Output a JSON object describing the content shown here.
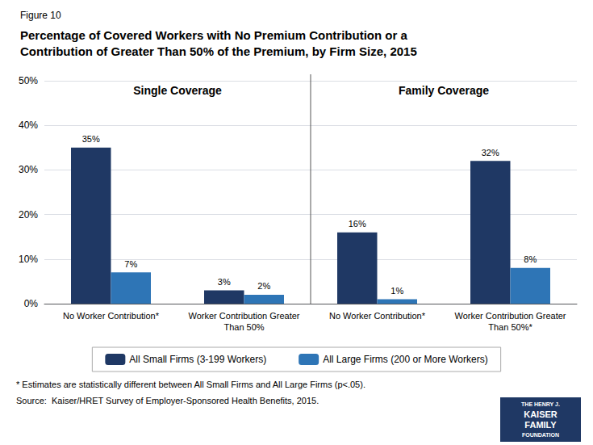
{
  "chart_data": {
    "type": "bar",
    "subtitle": "Figure 10",
    "title": "Percentage of Covered Workers with No Premium Contribution or a\nContribution of Greater Than 50% of the Premium, by Firm Size, 2015",
    "categories": [
      "No Worker Contribution*",
      "Worker Contribution Greater\nThan 50%",
      "No Worker Contribution*",
      "Worker Contribution Greater\nThan 50%*"
    ],
    "series": [
      {
        "name": "All Small Firms (3-199 Workers)",
        "color": "#1F3864",
        "values": [
          35,
          3,
          16,
          32
        ],
        "value_labels": [
          "35%",
          "3%",
          "16%",
          "32%"
        ]
      },
      {
        "name": "All Large Firms (200 or More Workers)",
        "color": "#2E75B6",
        "values": [
          7,
          2,
          1,
          8
        ],
        "value_labels": [
          "7%",
          "2%",
          "1%",
          "8%"
        ]
      }
    ],
    "ylim": [
      0,
      50
    ],
    "yticks": [
      {
        "value": 0,
        "label": "0%"
      },
      {
        "value": 10,
        "label": "10%"
      },
      {
        "value": 20,
        "label": "20%"
      },
      {
        "value": 30,
        "label": "30%"
      },
      {
        "value": 40,
        "label": "40%"
      },
      {
        "value": 50,
        "label": "50%"
      }
    ],
    "grid": true,
    "legend": "bottom",
    "data_labels": true,
    "annotations": [
      "Single Coverage",
      "Family Coverage",
      "* Estimates are statistically different between All Small Firms and All Large Firms (p<.05).",
      "Source:  Kaiser/HRET Survey of Employer-Sponsored Health Benefits, 2015.",
      "THE HENRY J.",
      "KAISER",
      "FAMILY",
      "FOUNDATION"
    ]
  }
}
